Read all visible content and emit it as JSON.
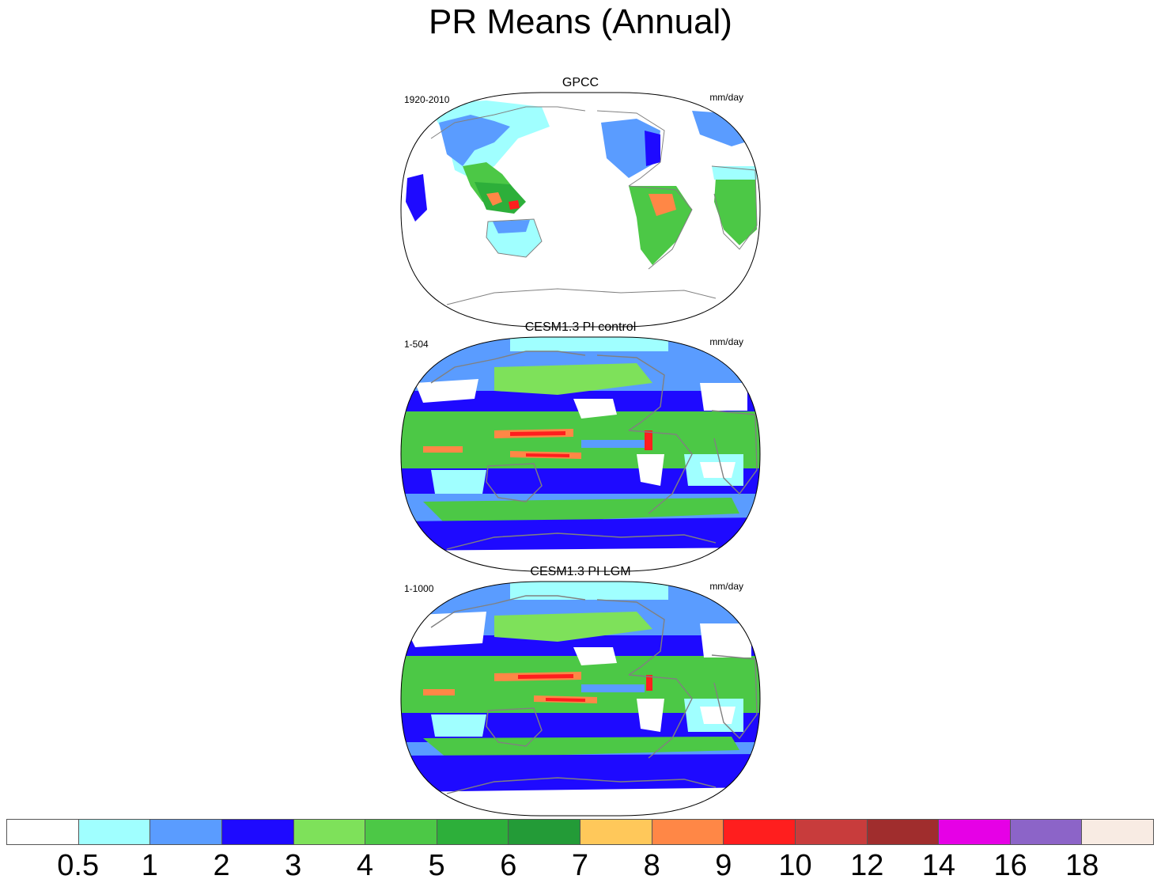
{
  "title": "PR Means (Annual)",
  "panels": [
    {
      "title": "GPCC",
      "left_label": "1920-2010",
      "right_label": "mm/day",
      "kind": "observed"
    },
    {
      "title": "CESM1.3 PI control",
      "left_label": "1-504",
      "right_label": "mm/day",
      "kind": "model"
    },
    {
      "title": "CESM1.3 PI LGM",
      "left_label": "1-1000",
      "right_label": "mm/day",
      "kind": "model"
    }
  ],
  "colorbar": {
    "levels": [
      "0.5",
      "1",
      "2",
      "3",
      "4",
      "5",
      "6",
      "7",
      "8",
      "9",
      "10",
      "12",
      "14",
      "16",
      "18"
    ],
    "colors": [
      "#ffffff",
      "#a0ffff",
      "#5a9cff",
      "#1e0aff",
      "#7ee15a",
      "#4cc846",
      "#2daf3a",
      "#239b37",
      "#ffc85a",
      "#ff8746",
      "#ff1e1e",
      "#c83c3c",
      "#a02d2d",
      "#e600e6",
      "#8c64c8",
      "#f8ebe3"
    ]
  },
  "palette": {
    "white": "#ffffff",
    "cyan": "#a0ffff",
    "lightblue": "#5a9cff",
    "blue": "#1e0aff",
    "lgreen": "#7ee15a",
    "green": "#4cc846",
    "dgreen": "#2daf3a",
    "ddgreen": "#239b37",
    "yellow": "#ffc85a",
    "orange": "#ff8746",
    "red": "#ff1e1e",
    "coast": "#808080"
  }
}
